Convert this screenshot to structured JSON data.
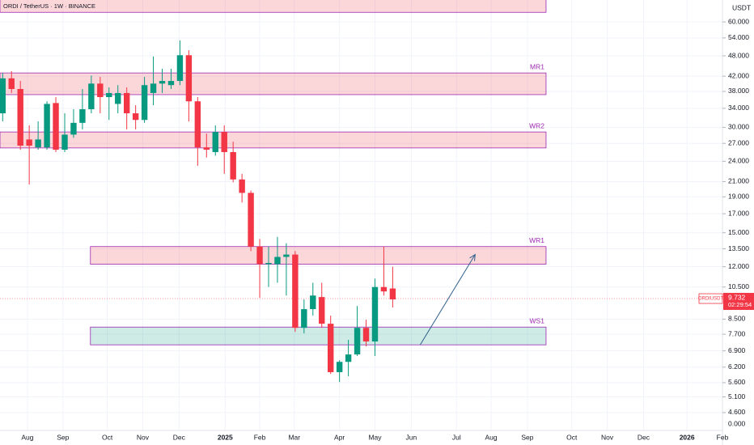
{
  "chart_data": {
    "type": "candlestick",
    "title": "ORDI / TetherUS · 1W · BINANCE",
    "y_unit_label": "USDT",
    "bottom_axis_label": "0.000",
    "log_scale": true,
    "up_color": "#089981",
    "down_color": "#f23645",
    "x": [
      0,
      1,
      2,
      3,
      4,
      5,
      6,
      7,
      8,
      9,
      10,
      11,
      12,
      13,
      14,
      15,
      16,
      17,
      18,
      19,
      20,
      21,
      22,
      23,
      24,
      25,
      26,
      27,
      28,
      29,
      30,
      31,
      32,
      33,
      34,
      35,
      36,
      37,
      38,
      39,
      40,
      41,
      42,
      43,
      44
    ],
    "open": [
      32.9,
      41.4,
      38.6,
      27.7,
      26.3,
      26.3,
      35.2,
      25.9,
      28.6,
      30.9,
      33.8,
      40.0,
      36.6,
      35.0,
      37.6,
      32.9,
      31.5,
      37.6,
      40.0,
      39.6,
      40.7,
      48.2,
      35.6,
      26.3,
      25.5,
      29.1,
      25.5,
      21.3,
      19.5,
      13.7,
      12.2,
      12.2,
      12.8,
      13.0,
      8.03,
      9.08,
      9.83,
      8.25,
      6.0,
      6.42,
      6.74,
      8.03,
      7.34,
      10.5,
      10.4
    ],
    "high": [
      42.9,
      43.4,
      40.7,
      30.4,
      31.2,
      35.6,
      36.6,
      32.9,
      33.8,
      38.6,
      42.2,
      41.8,
      39.0,
      39.6,
      39.0,
      34.7,
      41.8,
      47.8,
      44.1,
      44.1,
      53.1,
      49.8,
      36.6,
      28.8,
      30.4,
      30.4,
      27.3,
      22.1,
      19.8,
      14.4,
      13.7,
      14.6,
      14.0,
      13.3,
      9.68,
      10.8,
      10.8,
      8.7,
      6.49,
      7.42,
      9.27,
      8.47,
      11.1,
      13.7,
      12.0
    ],
    "low": [
      31.2,
      37.6,
      25.9,
      20.6,
      25.9,
      25.9,
      25.5,
      25.5,
      28.0,
      29.6,
      32.9,
      32.9,
      31.5,
      32.9,
      29.6,
      29.6,
      30.9,
      34.7,
      37.6,
      38.6,
      39.6,
      31.2,
      23.3,
      24.6,
      24.9,
      22.1,
      20.9,
      18.3,
      13.3,
      9.78,
      10.5,
      10.8,
      9.93,
      7.82,
      7.74,
      8.7,
      8.03,
      5.93,
      5.62,
      5.84,
      6.67,
      7.11,
      6.67,
      9.93,
      9.18
    ],
    "close": [
      41.4,
      38.6,
      26.6,
      26.6,
      27.7,
      35.0,
      25.9,
      28.6,
      30.9,
      33.8,
      40.0,
      36.6,
      37.6,
      37.6,
      32.9,
      31.5,
      39.6,
      40.0,
      40.7,
      40.7,
      48.2,
      35.6,
      26.3,
      25.9,
      29.1,
      25.5,
      21.3,
      19.5,
      13.7,
      12.2,
      12.3,
      12.8,
      13.0,
      8.03,
      9.08,
      9.93,
      8.25,
      6.0,
      6.42,
      6.74,
      8.03,
      7.34,
      10.5,
      10.2,
      9.68
    ],
    "xlim": [
      -0.3,
      81.2
    ],
    "xticks": [
      {
        "value": 2.8,
        "label": "Aug"
      },
      {
        "value": 6.8,
        "label": "Sep"
      },
      {
        "value": 11.8,
        "label": "Oct"
      },
      {
        "value": 15.8,
        "label": "Nov"
      },
      {
        "value": 19.9,
        "label": "Dec"
      },
      {
        "value": 25.1,
        "label": "2025"
      },
      {
        "value": 29.0,
        "label": "Feb"
      },
      {
        "value": 32.9,
        "label": "Mar"
      },
      {
        "value": 38.0,
        "label": "Apr"
      },
      {
        "value": 42.0,
        "label": "May"
      },
      {
        "value": 46.1,
        "label": "Jun"
      },
      {
        "value": 51.2,
        "label": "Jul"
      },
      {
        "value": 55.1,
        "label": "Aug"
      },
      {
        "value": 59.2,
        "label": "Sep"
      },
      {
        "value": 64.2,
        "label": "Oct"
      },
      {
        "value": 68.2,
        "label": "Nov"
      },
      {
        "value": 72.3,
        "label": "Dec"
      },
      {
        "value": 77.2,
        "label": "2026"
      },
      {
        "value": 81.2,
        "label": "Feb"
      }
    ],
    "ylim": [
      4.09,
      69.3
    ],
    "yticks": [
      {
        "value": 60,
        "label": "60.000"
      },
      {
        "value": 54,
        "label": "54.000"
      },
      {
        "value": 48,
        "label": "48.000"
      },
      {
        "value": 42,
        "label": "42.000"
      },
      {
        "value": 38,
        "label": "38.000"
      },
      {
        "value": 34,
        "label": "34.000"
      },
      {
        "value": 30,
        "label": "30.000"
      },
      {
        "value": 27,
        "label": "27.000"
      },
      {
        "value": 24,
        "label": "24.000"
      },
      {
        "value": 21,
        "label": "21.000"
      },
      {
        "value": 19,
        "label": "19.000"
      },
      {
        "value": 17,
        "label": "17.000"
      },
      {
        "value": 15,
        "label": "15.000"
      },
      {
        "value": 13.5,
        "label": "13.500"
      },
      {
        "value": 12,
        "label": "12.000"
      },
      {
        "value": 10.5,
        "label": "10.500"
      },
      {
        "value": 8.5,
        "label": "8.500"
      },
      {
        "value": 7.7,
        "label": "7.700"
      },
      {
        "value": 6.9,
        "label": "6.900"
      },
      {
        "value": 6.2,
        "label": "6.200"
      },
      {
        "value": 5.6,
        "label": "5.600"
      },
      {
        "value": 5.1,
        "label": "5.100"
      },
      {
        "value": 4.6,
        "label": "4.600"
      }
    ],
    "zones": [
      {
        "low": 63.9,
        "high": 70,
        "x": [
          -0.3,
          61.3
        ],
        "color": "#f23645"
      },
      {
        "name": "MR1",
        "low": 37.2,
        "high": 42.9,
        "x": [
          -0.3,
          61.3
        ],
        "color": "#f23645"
      },
      {
        "name": "WR2",
        "low": 26.2,
        "high": 29.1,
        "x": [
          -0.3,
          61.3
        ],
        "color": "#f23645"
      },
      {
        "name": "WR1",
        "low": 12.2,
        "high": 13.7,
        "x": [
          9.9,
          61.3
        ],
        "color": "#f23645"
      },
      {
        "name": "WS1",
        "low": 7.18,
        "high": 8.07,
        "x": [
          9.9,
          61.3
        ],
        "color": "#089981"
      }
    ],
    "arrow": {
      "x": [
        47.1,
        53.3
      ],
      "y": [
        7.18,
        13.0
      ],
      "color": "#2f5f8a"
    },
    "last_price": {
      "symbol": "ORDIUSDT",
      "value": 9.732,
      "countdown": "02:29:54",
      "color": "#f23645"
    }
  }
}
